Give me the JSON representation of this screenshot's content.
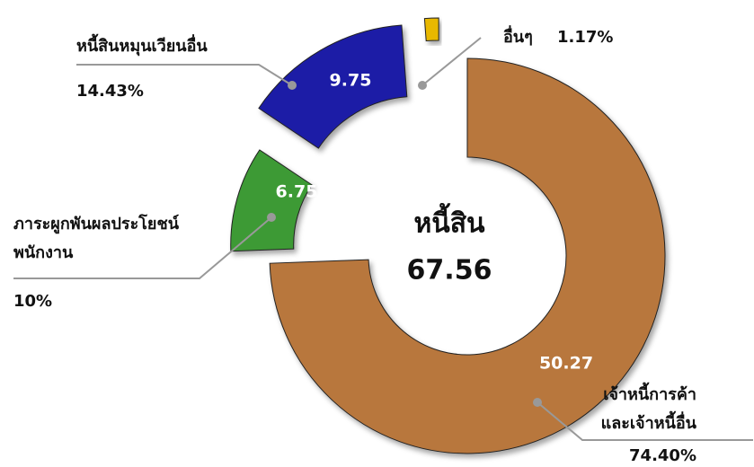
{
  "chart_data": {
    "type": "donut",
    "center_label": "หนี้สิน",
    "total": 67.56,
    "categories": [
      "เจ้าหนี้การค้า\nและเจ้าหนี้อื่น",
      "ภาระผูกพันผลประโยชน์\nพนักงาน",
      "หนี้สินหมุนเวียนอื่น",
      "อื่นๆ"
    ],
    "values": [
      50.27,
      6.75,
      9.75,
      0.79
    ],
    "value_labels": [
      "50.27",
      "6.75",
      "9.75",
      null
    ],
    "percent_labels": [
      "74.40%",
      "10%",
      "14.43%",
      "1.17%"
    ],
    "colors": [
      "#b8773d",
      "#3d9a36",
      "#1c1ca6",
      "#e8b800"
    ]
  }
}
